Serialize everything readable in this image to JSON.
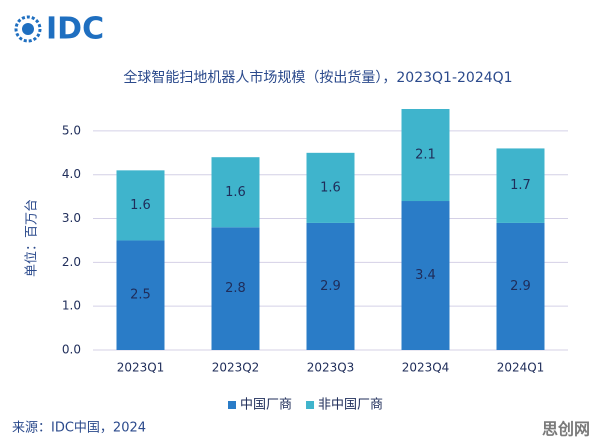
{
  "chart_data": {
    "type": "stacked_bar",
    "logo": "IDC",
    "title": "全球智能扫地机器人市场规模（按出货量），2023Q1-2024Q1",
    "ylabel": "单位：百万台",
    "categories": [
      "2023Q1",
      "2023Q2",
      "2023Q3",
      "2023Q4",
      "2024Q1"
    ],
    "series": [
      {
        "name": "中国厂商",
        "color": "#2a7cc7",
        "values": [
          2.5,
          2.8,
          2.9,
          3.4,
          2.9
        ]
      },
      {
        "name": "非中国厂商",
        "color": "#3fb4cc",
        "values": [
          1.6,
          1.6,
          1.6,
          2.1,
          1.7
        ]
      }
    ],
    "ylim": [
      0,
      5.5
    ],
    "yticks": [
      {
        "value": 0,
        "label": "0.0"
      },
      {
        "value": 1,
        "label": "1.0"
      },
      {
        "value": 2,
        "label": "2.0"
      },
      {
        "value": 3,
        "label": "3.0"
      },
      {
        "value": 4,
        "label": "4.0"
      },
      {
        "value": 5,
        "label": "5.0"
      }
    ],
    "grid": true,
    "legend": "bottom",
    "source": "来源：IDC中国，2024",
    "watermark": "思创网"
  }
}
